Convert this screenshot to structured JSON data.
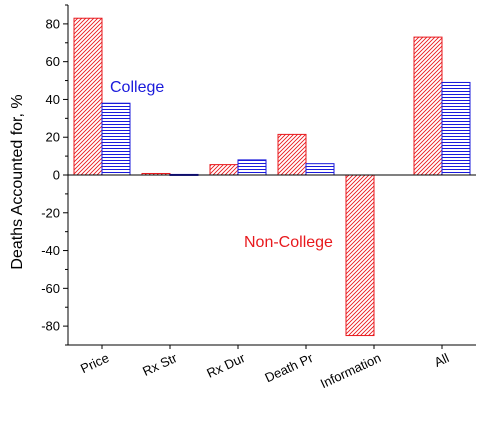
{
  "chart_data": {
    "type": "bar",
    "categories": [
      "Price",
      "Rx Str",
      "Rx Dur",
      "Death Pr",
      "Information",
      "All"
    ],
    "series": [
      {
        "name": "Non-College",
        "values": [
          83,
          0.8,
          5.5,
          21.5,
          -85,
          73
        ],
        "color": "#e8191d",
        "pattern": "diagonal-hatch"
      },
      {
        "name": "College",
        "values": [
          38,
          0.3,
          8,
          6,
          0,
          49
        ],
        "color": "#1a1adb",
        "pattern": "horizontal-lines"
      }
    ],
    "ylabel": "Deaths Accounted for, %",
    "ylim": [
      -90,
      90
    ],
    "yticks": [
      80,
      60,
      40,
      20,
      0,
      -20,
      -40,
      -60,
      -80
    ],
    "ytick_labels": [
      "80",
      "60",
      "40",
      "20",
      "0",
      "-20",
      "-40",
      "-60",
      "-80"
    ],
    "grid": false,
    "annotations": [
      {
        "text": "College",
        "color": "#1a1adb"
      },
      {
        "text": "Non-College",
        "color": "#e8191d"
      }
    ]
  }
}
